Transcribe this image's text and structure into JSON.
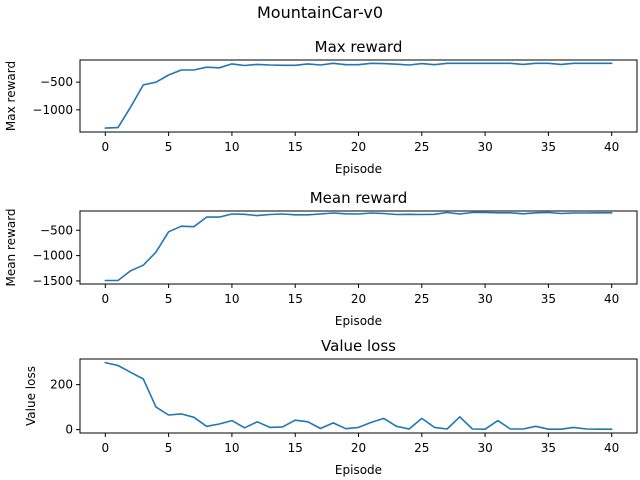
{
  "figure": {
    "suptitle": "MountainCar-v0",
    "line_color": "#1f77b4"
  },
  "chart_data": [
    {
      "type": "line",
      "title": "Max reward",
      "xlabel": "Episode",
      "ylabel": "Max reward",
      "xlim": [
        -2,
        42
      ],
      "ylim": [
        -1400,
        -100
      ],
      "xticks": [
        0,
        5,
        10,
        15,
        20,
        25,
        30,
        35,
        40
      ],
      "yticks": [
        -1000,
        -500
      ],
      "yticklabels": [
        "−1000",
        "−500"
      ],
      "grid": false,
      "series": [
        {
          "x": [
            0,
            1,
            2,
            3,
            4,
            5,
            6,
            7,
            8,
            9,
            10,
            11,
            12,
            13,
            14,
            15,
            16,
            17,
            18,
            19,
            20,
            21,
            22,
            23,
            24,
            25,
            26,
            27,
            28,
            29,
            30,
            31,
            32,
            33,
            34,
            35,
            36,
            37,
            38,
            39,
            40
          ],
          "values": [
            -1330,
            -1320,
            -950,
            -550,
            -500,
            -370,
            -280,
            -280,
            -230,
            -240,
            -170,
            -200,
            -180,
            -190,
            -195,
            -195,
            -170,
            -190,
            -160,
            -185,
            -185,
            -160,
            -165,
            -175,
            -190,
            -165,
            -185,
            -160,
            -160,
            -160,
            -160,
            -160,
            -160,
            -180,
            -160,
            -160,
            -180,
            -160,
            -160,
            -160,
            -160
          ]
        }
      ]
    },
    {
      "type": "line",
      "title": "Mean reward",
      "xlabel": "Episode",
      "ylabel": "Mean reward",
      "xlim": [
        -2,
        42
      ],
      "ylim": [
        -1560,
        -120
      ],
      "xticks": [
        0,
        5,
        10,
        15,
        20,
        25,
        30,
        35,
        40
      ],
      "yticks": [
        -1500,
        -1000,
        -500
      ],
      "yticklabels": [
        "−1500",
        "−1000",
        "−500"
      ],
      "grid": false,
      "series": [
        {
          "x": [
            0,
            1,
            2,
            3,
            4,
            5,
            6,
            7,
            8,
            9,
            10,
            11,
            12,
            13,
            14,
            15,
            16,
            17,
            18,
            19,
            20,
            21,
            22,
            23,
            24,
            25,
            26,
            27,
            28,
            29,
            30,
            31,
            32,
            33,
            34,
            35,
            36,
            37,
            38,
            39,
            40
          ],
          "values": [
            -1490,
            -1490,
            -1300,
            -1190,
            -930,
            -530,
            -420,
            -430,
            -240,
            -240,
            -180,
            -185,
            -210,
            -190,
            -180,
            -195,
            -195,
            -180,
            -160,
            -175,
            -180,
            -160,
            -170,
            -190,
            -185,
            -190,
            -185,
            -150,
            -180,
            -150,
            -150,
            -155,
            -155,
            -175,
            -155,
            -150,
            -170,
            -160,
            -160,
            -155,
            -155
          ]
        }
      ]
    },
    {
      "type": "line",
      "title": "Value loss",
      "xlabel": "Episode",
      "ylabel": "Value loss",
      "xlim": [
        -2,
        42
      ],
      "ylim": [
        -15,
        314
      ],
      "xticks": [
        0,
        5,
        10,
        15,
        20,
        25,
        30,
        35,
        40
      ],
      "yticks": [
        0,
        200
      ],
      "yticklabels": [
        "0",
        "200"
      ],
      "grid": false,
      "series": [
        {
          "x": [
            0,
            1,
            2,
            3,
            4,
            5,
            6,
            7,
            8,
            9,
            10,
            11,
            12,
            13,
            14,
            15,
            16,
            17,
            18,
            19,
            20,
            21,
            22,
            23,
            24,
            25,
            26,
            27,
            28,
            29,
            30,
            31,
            32,
            33,
            34,
            35,
            36,
            37,
            38,
            39,
            40
          ],
          "values": [
            298,
            285,
            255,
            225,
            100,
            65,
            70,
            55,
            15,
            25,
            40,
            8,
            35,
            10,
            12,
            42,
            35,
            5,
            30,
            4,
            10,
            32,
            50,
            15,
            3,
            50,
            10,
            3,
            57,
            3,
            2,
            40,
            3,
            3,
            15,
            2,
            2,
            10,
            3,
            2,
            2
          ]
        }
      ]
    }
  ]
}
